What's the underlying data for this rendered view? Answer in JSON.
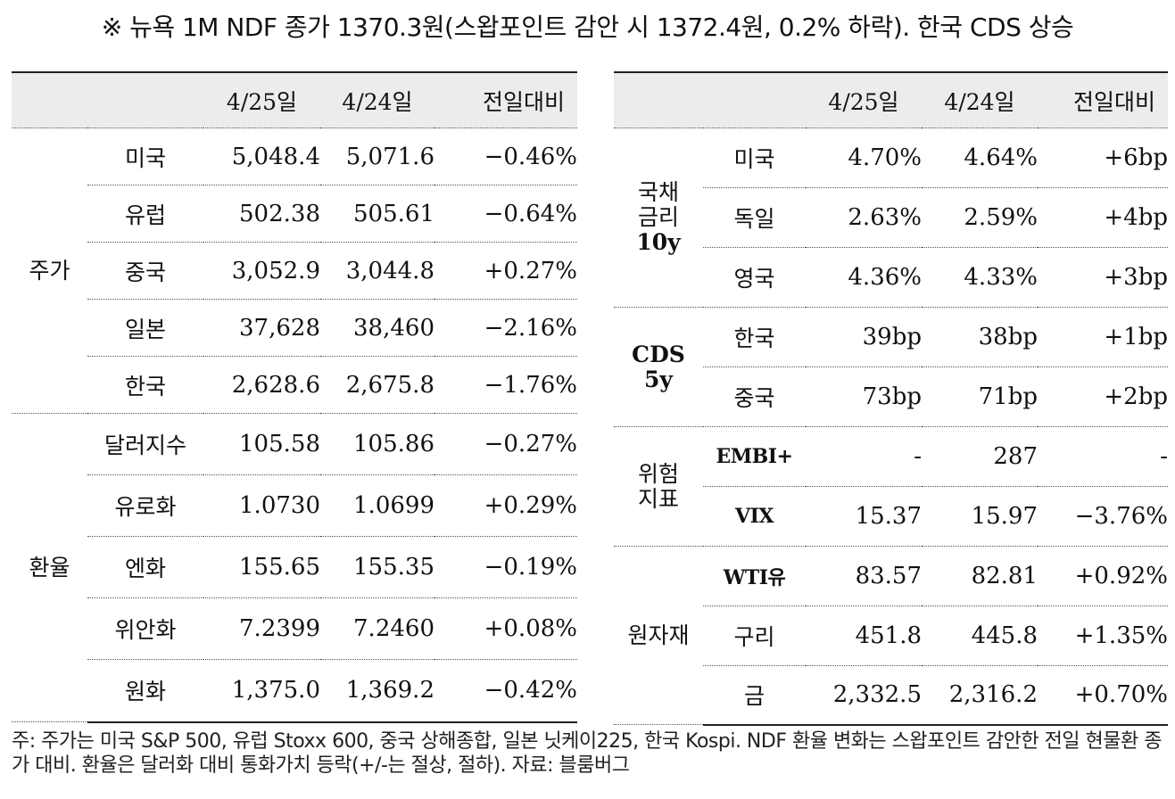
{
  "title": "※ 뉴욕 1M NDF 종가 1370.3원(스왑포인트 감안 시 1372.4원, 0.2% 하락). 한국 CDS 상승",
  "left_table": {
    "headers": [
      "",
      "",
      "4/25일",
      "4/24일",
      "전일대비"
    ],
    "groups": [
      {
        "label": "주가",
        "rows": [
          {
            "name": "미국",
            "d0425": "5,048.4",
            "d0424": "5,071.6",
            "change": "−0.46%"
          },
          {
            "name": "유럽",
            "d0425": "502.38",
            "d0424": "505.61",
            "change": "−0.64%"
          },
          {
            "name": "중국",
            "d0425": "3,052.9",
            "d0424": "3,044.8",
            "change": "+0.27%"
          },
          {
            "name": "일본",
            "d0425": "37,628",
            "d0424": "38,460",
            "change": "−2.16%"
          },
          {
            "name": "한국",
            "d0425": "2,628.6",
            "d0424": "2,675.8",
            "change": "−1.76%"
          }
        ]
      },
      {
        "label": "환율",
        "rows": [
          {
            "name": "달러지수",
            "d0425": "105.58",
            "d0424": "105.86",
            "change": "−0.27%"
          },
          {
            "name": "유로화",
            "d0425": "1.0730",
            "d0424": "1.0699",
            "change": "+0.29%"
          },
          {
            "name": "엔화",
            "d0425": "155.65",
            "d0424": "155.35",
            "change": "−0.19%"
          },
          {
            "name": "위안화",
            "d0425": "7.2399",
            "d0424": "7.2460",
            "change": "+0.08%"
          },
          {
            "name": "원화",
            "d0425": "1,375.0",
            "d0424": "1,369.2",
            "change": "−0.42%"
          }
        ]
      }
    ]
  },
  "right_table": {
    "headers": [
      "",
      "",
      "4/25일",
      "4/24일",
      "전일대비"
    ],
    "groups": [
      {
        "label_lines": [
          "국채",
          "금리",
          "10y"
        ],
        "rows": [
          {
            "name": "미국",
            "d0425": "4.70%",
            "d0424": "4.64%",
            "change": "+6bp"
          },
          {
            "name": "독일",
            "d0425": "2.63%",
            "d0424": "2.59%",
            "change": "+4bp"
          },
          {
            "name": "영국",
            "d0425": "4.36%",
            "d0424": "4.33%",
            "change": "+3bp"
          }
        ]
      },
      {
        "label_lines": [
          "CDS",
          "5y"
        ],
        "rows": [
          {
            "name": "한국",
            "d0425": "39bp",
            "d0424": "38bp",
            "change": "+1bp"
          },
          {
            "name": "중국",
            "d0425": "73bp",
            "d0424": "71bp",
            "change": "+2bp"
          }
        ]
      },
      {
        "label_lines": [
          "위험",
          "지표"
        ],
        "rows": [
          {
            "name": "EMBI+",
            "d0425": "-",
            "d0424": "287",
            "change": "-"
          },
          {
            "name": "VIX",
            "d0425": "15.37",
            "d0424": "15.97",
            "change": "−3.76%"
          }
        ]
      },
      {
        "label_lines": [
          "원자재"
        ],
        "rows": [
          {
            "name": "WTI유",
            "d0425": "83.57",
            "d0424": "82.81",
            "change": "+0.92%"
          },
          {
            "name": "구리",
            "d0425": "451.8",
            "d0424": "445.8",
            "change": "+1.35%"
          },
          {
            "name": "금",
            "d0425": "2,332.5",
            "d0424": "2,316.2",
            "change": "+0.70%"
          }
        ]
      }
    ]
  },
  "footnote": "주: 주가는 미국 S&P 500, 유럽 Stoxx 600, 중국 상해종합, 일본 닛케이225, 한국 Kospi. NDF 환율 변화는 스왑포인트 감안한 전일 현물환 종가 대비. 환율은 달러화 대비 통화가치 등락(+/-는 절상, 절하). 자료: 블룸버그"
}
